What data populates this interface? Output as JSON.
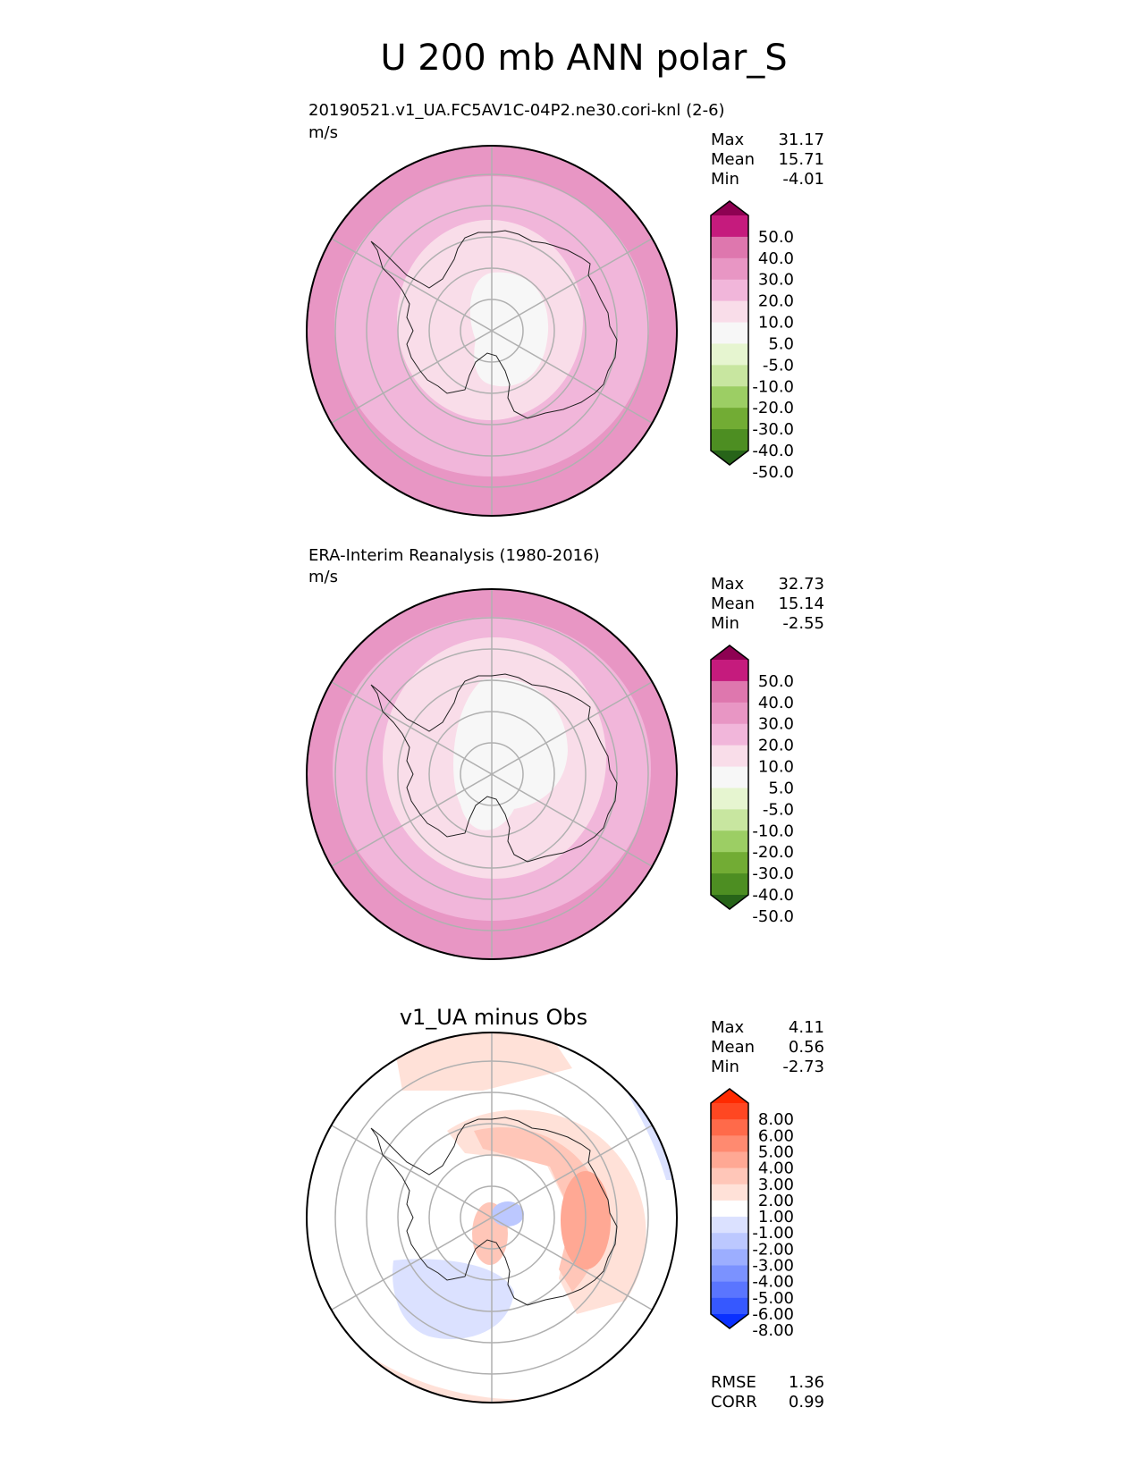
{
  "chart_data": {
    "type": "heatmap",
    "title": "U 200 mb ANN polar_S",
    "projection": "south polar stereographic",
    "panels": [
      {
        "id": "test",
        "title": "20190521.v1_UA.FC5AV1C-04P2.ne30.cori-knl (2-6)",
        "units": "m/s",
        "stats": [
          {
            "label": "Max",
            "value": "31.17"
          },
          {
            "label": "Mean",
            "value": "15.71"
          },
          {
            "label": "Min",
            "value": "-4.01"
          }
        ],
        "levels": [
          "50.0",
          "40.0",
          "30.0",
          "20.0",
          "10.0",
          "5.0",
          "-5.0",
          "-10.0",
          "-20.0",
          "-30.0",
          "-40.0",
          "-50.0"
        ],
        "colors": [
          "#8e0152",
          "#c51b7d",
          "#de77ae",
          "#e896c4",
          "#f1b6da",
          "#f9dde9",
          "#f7f7f7",
          "#e6f5d0",
          "#c8e6a0",
          "#9cce64",
          "#72ac34",
          "#4d8e22",
          "#276419"
        ]
      },
      {
        "id": "reference",
        "title": "ERA-Interim Reanalysis (1980-2016)",
        "units": "m/s",
        "stats": [
          {
            "label": "Max",
            "value": "32.73"
          },
          {
            "label": "Mean",
            "value": "15.14"
          },
          {
            "label": "Min",
            "value": "-2.55"
          }
        ],
        "levels": [
          "50.0",
          "40.0",
          "30.0",
          "20.0",
          "10.0",
          "5.0",
          "-5.0",
          "-10.0",
          "-20.0",
          "-30.0",
          "-40.0",
          "-50.0"
        ],
        "colors": [
          "#8e0152",
          "#c51b7d",
          "#de77ae",
          "#e896c4",
          "#f1b6da",
          "#f9dde9",
          "#f7f7f7",
          "#e6f5d0",
          "#c8e6a0",
          "#9cce64",
          "#72ac34",
          "#4d8e22",
          "#276419"
        ]
      },
      {
        "id": "difference",
        "title": "v1_UA minus Obs",
        "units": "",
        "stats": [
          {
            "label": "Max",
            "value": "4.11"
          },
          {
            "label": "Mean",
            "value": "0.56"
          },
          {
            "label": "Min",
            "value": "-2.73"
          }
        ],
        "levels": [
          "8.00",
          "6.00",
          "5.00",
          "4.00",
          "3.00",
          "2.00",
          "1.00",
          "-1.00",
          "-2.00",
          "-3.00",
          "-4.00",
          "-5.00",
          "-6.00",
          "-8.00"
        ],
        "colors": [
          "#ff2a00",
          "#ff4722",
          "#ff6a4a",
          "#ff8a70",
          "#ffa894",
          "#ffc6b8",
          "#ffe1d8",
          "#ffffff",
          "#dbe1ff",
          "#bcc8ff",
          "#9caeff",
          "#7b92ff",
          "#5a75ff",
          "#3658ff",
          "#0a30ff"
        ],
        "extra_stats": [
          {
            "label": "RMSE",
            "value": "1.36"
          },
          {
            "label": "CORR",
            "value": "0.99"
          }
        ]
      }
    ]
  }
}
